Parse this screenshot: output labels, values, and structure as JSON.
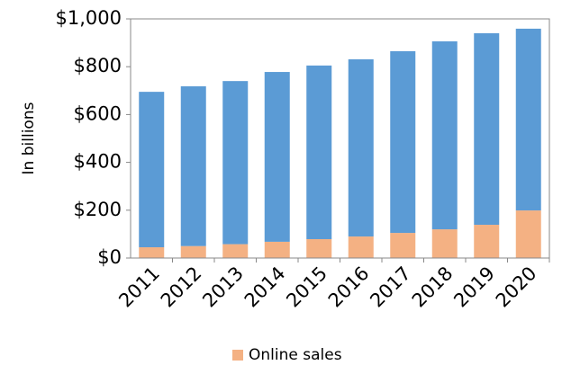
{
  "chart_data": {
    "type": "stacked-bar",
    "y_label": "In billions",
    "categories": [
      "2011",
      "2012",
      "2013",
      "2014",
      "2015",
      "2016",
      "2017",
      "2018",
      "2019",
      "2020"
    ],
    "series": [
      {
        "name": "Online sales",
        "color": "#f4b183",
        "values": [
          45,
          50,
          58,
          68,
          79,
          90,
          105,
          120,
          139,
          199
        ]
      },
      {
        "color": "#5b9bd5",
        "values": [
          650,
          668,
          682,
          710,
          726,
          741,
          760,
          786,
          801,
          760
        ]
      }
    ],
    "ylim": [
      0,
      1000
    ],
    "yticks": [
      {
        "value": 0,
        "label": "$0"
      },
      {
        "value": 200,
        "label": "$200"
      },
      {
        "value": 400,
        "label": "$400"
      },
      {
        "value": 600,
        "label": "$600"
      },
      {
        "value": 800,
        "label": "$800"
      },
      {
        "value": 1000,
        "label": "$1,000"
      }
    ],
    "legend": "bottom"
  }
}
